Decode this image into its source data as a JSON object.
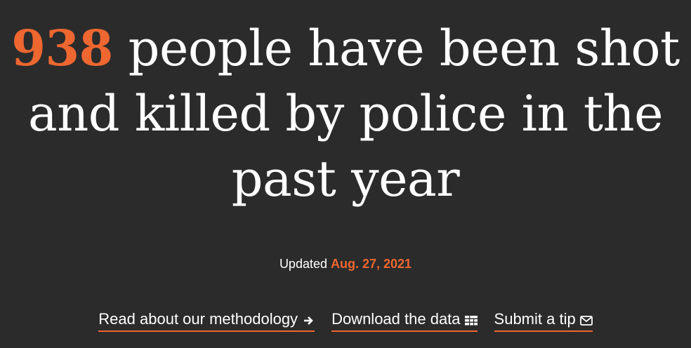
{
  "headline": {
    "count": "938",
    "text": " people have been shot and killed by police in the past year"
  },
  "updated": {
    "label": "Updated ",
    "date": "Aug. 27, 2021"
  },
  "links": [
    {
      "label": "Read about our methodology",
      "icon": "arrow-right-icon"
    },
    {
      "label": "Download the data",
      "icon": "data-table-icon"
    },
    {
      "label": "Submit a tip",
      "icon": "envelope-icon"
    }
  ],
  "colors": {
    "background": "#2b2b2b",
    "accent": "#ee6730",
    "text": "#ffffff"
  }
}
